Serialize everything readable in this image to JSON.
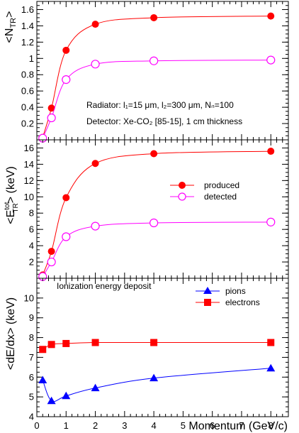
{
  "chart_data": [
    {
      "type": "line",
      "ylabel_main": "<N",
      "ylabel_sub": "TR",
      "ylabel_close": ">",
      "ylim": [
        0,
        1.7
      ],
      "yticks": [
        0.2,
        0.4,
        0.6,
        0.8,
        1,
        1.2,
        1.4,
        1.6
      ],
      "ytick_labels": [
        "0.2",
        "0.4",
        "0.6",
        "0.8",
        "1",
        "1.2",
        "1.4",
        "1.6"
      ],
      "x": [
        0.2,
        0.5,
        1,
        2,
        4,
        8
      ],
      "series": [
        {
          "key": "produced",
          "marker": "filled-circle",
          "color": "#ff0000",
          "values": [
            0.03,
            0.39,
            1.1,
            1.42,
            1.5,
            1.52
          ]
        },
        {
          "key": "detected",
          "marker": "open-circle",
          "color": "#ff00ff",
          "values": [
            0.02,
            0.27,
            0.74,
            0.93,
            0.97,
            0.98
          ]
        }
      ],
      "annotations": [
        {
          "key": "radiator",
          "text": "Radiator: l₁=15 μm, l₂=300 μm, Nₙ=100"
        },
        {
          "key": "detector",
          "text": "Detector: Xe-CO₂ [85-15], 1 cm thickness"
        }
      ]
    },
    {
      "type": "line",
      "ylabel_main": "<E",
      "ylabel_sup": "tot",
      "ylabel_sub": "TR",
      "ylabel_close": "> (keV)",
      "ylim": [
        0,
        17
      ],
      "yticks": [
        2,
        4,
        6,
        8,
        10,
        12,
        14,
        16
      ],
      "ytick_labels": [
        "2",
        "4",
        "6",
        "8",
        "10",
        "12",
        "14",
        "16"
      ],
      "x": [
        0.2,
        0.5,
        1,
        2,
        4,
        8
      ],
      "series": [
        {
          "name": "produced",
          "marker": "filled-circle",
          "color": "#ff0000",
          "values": [
            0.4,
            3.3,
            9.9,
            14.1,
            15.3,
            15.6
          ]
        },
        {
          "name": "detected",
          "marker": "open-circle",
          "color": "#ff00ff",
          "values": [
            0.2,
            2.0,
            5.1,
            6.4,
            6.8,
            6.9
          ]
        }
      ],
      "legend": "right"
    },
    {
      "type": "line",
      "ylabel_main": "<dE/dx> (keV)",
      "ylim": [
        4,
        11
      ],
      "yticks": [
        4,
        5,
        6,
        7,
        8,
        9,
        10
      ],
      "ytick_labels": [
        "4",
        "5",
        "6",
        "7",
        "8",
        "9",
        "10"
      ],
      "xlabel": "Momentum (GeV/c)",
      "xlim": [
        0,
        8.6
      ],
      "xticks": [
        0,
        1,
        2,
        3,
        4,
        5,
        6,
        7,
        8
      ],
      "xtick_labels": [
        "0",
        "1",
        "2",
        "3",
        "4",
        "5",
        "6",
        "7",
        "8"
      ],
      "x": [
        0.2,
        0.5,
        1,
        2,
        4,
        8
      ],
      "series": [
        {
          "name": "pions",
          "marker": "triangle",
          "color": "#0000ff",
          "values": [
            5.85,
            4.8,
            5.05,
            5.45,
            5.95,
            6.45
          ]
        },
        {
          "name": "electrons",
          "marker": "square",
          "color": "#ff0000",
          "values": [
            7.4,
            7.65,
            7.7,
            7.75,
            7.75,
            7.75
          ]
        }
      ],
      "title": "Ionization energy deposit",
      "legend": "top-right"
    }
  ]
}
